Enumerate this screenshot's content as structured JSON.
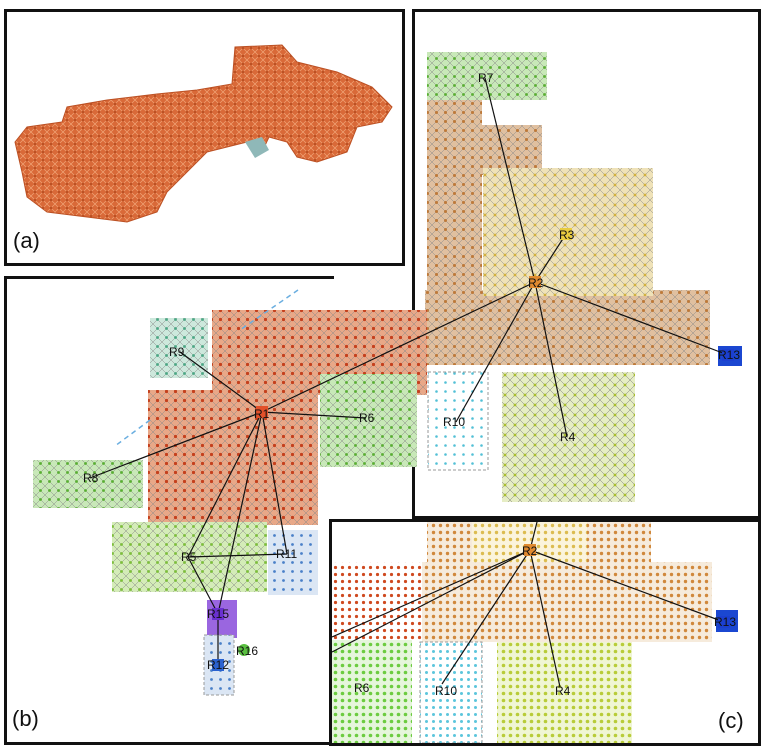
{
  "panels": {
    "a": {
      "label": "(a)"
    },
    "b": {
      "label": "(b)"
    },
    "c": {
      "label": "(c)"
    }
  },
  "colors": {
    "room_orange_red": "#d4592a",
    "corridor_brown": "#c88640",
    "yellow": "#d8c060",
    "green": "#6cc24a",
    "teal": "#5fb89a",
    "cyan": "#62c6d8",
    "olive": "#b4c83c",
    "blue_light": "#5a8fd0",
    "purple": "#7a3dd6",
    "blue_dark": "#1b47d1",
    "edge_gray": "#777777",
    "edge_red": "#e8504a"
  },
  "graph_b": {
    "nodes": [
      "R1",
      "R2",
      "R3",
      "R4",
      "R5",
      "R6",
      "R7",
      "R8",
      "R9",
      "R10",
      "R11",
      "R12",
      "R13",
      "R15",
      "R16"
    ]
  },
  "graph_c": {
    "nodes": [
      "R2",
      "R4",
      "R6",
      "R10",
      "R13"
    ]
  }
}
